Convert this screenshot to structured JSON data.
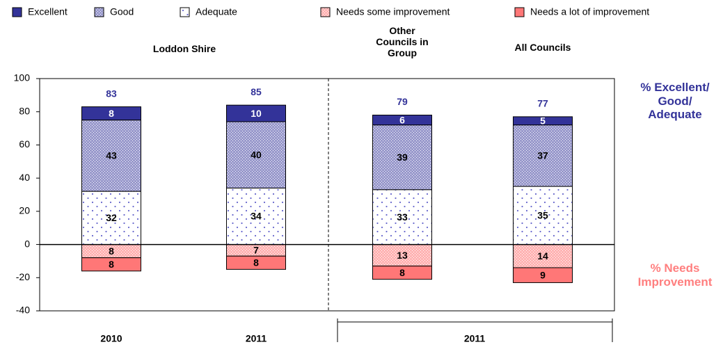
{
  "chart_data": {
    "type": "diverging_stacked_bar",
    "categories": [
      "2010",
      "2011",
      null,
      null
    ],
    "group_labels": [
      "Loddon Shire",
      "Other Councils in Group",
      "All Councils"
    ],
    "period_label": "2011",
    "series": [
      {
        "name": "Excellent",
        "color": "#333399",
        "pattern": "solid",
        "values": [
          8,
          10,
          6,
          5
        ]
      },
      {
        "name": "Good",
        "color": "#9999cc",
        "pattern": "checker",
        "values": [
          43,
          40,
          39,
          37
        ]
      },
      {
        "name": "Adequate",
        "color": "#6666cc",
        "pattern": "dots",
        "values": [
          32,
          34,
          33,
          35
        ]
      },
      {
        "name": "Needs some improvement",
        "color": "#ffb3b3",
        "pattern": "checker",
        "values": [
          -8,
          -7,
          -13,
          -14
        ],
        "value_labels": [
          "8",
          "7",
          "13",
          "14"
        ]
      },
      {
        "name": "Needs a lot of improvement",
        "color": "#ff7777",
        "pattern": "solid",
        "values": [
          -8,
          -8,
          -8,
          -9
        ],
        "value_labels": [
          "8",
          "8",
          "8",
          "9"
        ]
      }
    ],
    "totals": [
      83,
      85,
      79,
      77
    ],
    "annotations": [
      "% Excellent/ Good/ Adequate",
      "% Needs Improvement"
    ],
    "ylim": [
      -40,
      100
    ],
    "yticks": [
      -40,
      -20,
      0,
      20,
      40,
      60,
      80,
      100
    ]
  }
}
